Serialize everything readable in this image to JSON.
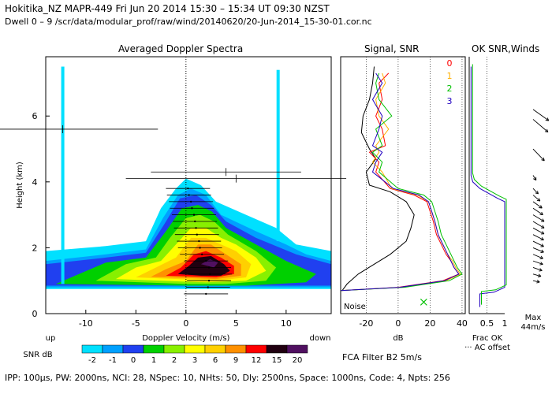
{
  "header": {
    "line1": "Hokitika_NZ  MAPR-449  Fri Jun 20 2014 15:30 – 15:34 UT 09:30 NZST",
    "line2": "Dwell  0 – 9   /scr/data/modular_prof/raw/wind/20140620/20-Jun-2014_15-30-01.cor.nc"
  },
  "footer": "IPP: 100µs,  PW: 2000ns,  NCI: 28,  NSpec: 10, NHts: 50,  Dly: 2500ns,  Space: 1000ns,  Code: 4,  Npts: 256",
  "filter_label": "FCA Filter B2  5m/s",
  "colors": {
    "snr_levels": [
      "#00e0ff",
      "#00a0ff",
      "#2040f0",
      "#00d000",
      "#88f000",
      "#ffff00",
      "#ffd000",
      "#ff9000",
      "#ff0000",
      "#200010",
      "#501060"
    ],
    "spectra_axis": "#000000",
    "range0": "#ff0000",
    "range1": "#ffb000",
    "range2": "#00c000",
    "range3": "#2000c0",
    "vector": "#000000"
  },
  "chart_data": [
    {
      "type": "heatmap",
      "title": "Averaged Doppler Spectra",
      "xlabel": "Doppler Velocity (m/s)",
      "ylabel": "Height (km)",
      "xlim": [
        -14,
        14.5
      ],
      "ylim": [
        0,
        7.8
      ],
      "xticks": [
        -10,
        -5,
        0,
        5,
        10
      ],
      "yticks": [
        0,
        2,
        4,
        6
      ],
      "up_label": "up",
      "down_label": "down",
      "colorbar": {
        "label": "SNR dB",
        "ticks": [
          "-2",
          "-1",
          "0",
          "1",
          "2",
          "3",
          "6",
          "9",
          "12",
          "15",
          "20"
        ]
      },
      "mean_profile": [
        {
          "h": 0.6,
          "v": 2.0
        },
        {
          "h": 0.8,
          "v": 2.2
        },
        {
          "h": 1.0,
          "v": 2.3
        },
        {
          "h": 1.2,
          "v": 2.4
        },
        {
          "h": 1.4,
          "v": 2.3
        },
        {
          "h": 1.6,
          "v": 2.0
        },
        {
          "h": 1.8,
          "v": 1.6
        },
        {
          "h": 2.0,
          "v": 1.4
        },
        {
          "h": 2.2,
          "v": 1.3
        },
        {
          "h": 2.4,
          "v": 1.1
        },
        {
          "h": 2.6,
          "v": 1.0
        },
        {
          "h": 2.8,
          "v": 0.9
        },
        {
          "h": 3.0,
          "v": 0.8
        },
        {
          "h": 3.2,
          "v": 0.6
        },
        {
          "h": 3.4,
          "v": 0.5
        },
        {
          "h": 3.6,
          "v": 0.3
        },
        {
          "h": 3.8,
          "v": 0.2
        }
      ],
      "outlier_points": [
        {
          "h": 5.6,
          "v": -12.3,
          "w": 19
        },
        {
          "h": 4.3,
          "v": 4.0,
          "w": 15
        },
        {
          "h": 4.1,
          "v": 5.0,
          "w": 22
        }
      ]
    },
    {
      "type": "line",
      "title": "Signal, SNR",
      "xlabel": "dB",
      "xlim": [
        -36,
        42
      ],
      "ylim": [
        0,
        7.8
      ],
      "xticks": [
        -20,
        0,
        20,
        40
      ],
      "range_gate_labels": [
        "0",
        "1",
        "2",
        "3"
      ],
      "noise_label": "Noise",
      "signal": [
        [
          0.7,
          -35
        ],
        [
          0.9,
          -32
        ],
        [
          1.2,
          -25
        ],
        [
          1.5,
          -15
        ],
        [
          1.8,
          -5
        ],
        [
          2.2,
          5
        ],
        [
          2.6,
          8
        ],
        [
          3.0,
          10
        ],
        [
          3.4,
          5
        ],
        [
          3.7,
          -5
        ],
        [
          3.9,
          -18
        ],
        [
          4.3,
          -20
        ],
        [
          4.7,
          -14
        ],
        [
          5.0,
          -18
        ],
        [
          5.5,
          -23
        ],
        [
          6.0,
          -22
        ],
        [
          6.5,
          -18
        ],
        [
          7.0,
          -16
        ],
        [
          7.5,
          -15
        ]
      ],
      "snr_series": [
        {
          "name": "0",
          "points": [
            [
              0.7,
              -36
            ],
            [
              0.8,
              0
            ],
            [
              1.0,
              28
            ],
            [
              1.2,
              38
            ],
            [
              1.4,
              35
            ],
            [
              1.6,
              33
            ],
            [
              1.8,
              30
            ],
            [
              2.1,
              27
            ],
            [
              2.4,
              24
            ],
            [
              2.8,
              22
            ],
            [
              3.1,
              20
            ],
            [
              3.4,
              18
            ],
            [
              3.6,
              10
            ],
            [
              3.8,
              -5
            ],
            [
              4.3,
              -14
            ],
            [
              4.6,
              -12
            ],
            [
              4.9,
              -18
            ],
            [
              5.1,
              -8
            ],
            [
              5.6,
              -10
            ],
            [
              6.0,
              -14
            ],
            [
              6.5,
              -10
            ],
            [
              7.0,
              -12
            ],
            [
              7.3,
              -6
            ]
          ]
        },
        {
          "name": "1",
          "points": [
            [
              0.7,
              -36
            ],
            [
              0.8,
              2
            ],
            [
              1.0,
              30
            ],
            [
              1.2,
              39
            ],
            [
              1.4,
              36
            ],
            [
              1.6,
              34
            ],
            [
              1.8,
              31
            ],
            [
              2.1,
              28
            ],
            [
              2.4,
              25
            ],
            [
              2.8,
              23
            ],
            [
              3.1,
              21
            ],
            [
              3.4,
              19
            ],
            [
              3.6,
              12
            ],
            [
              3.8,
              -4
            ],
            [
              4.3,
              -10
            ],
            [
              4.6,
              -16
            ],
            [
              4.9,
              -12
            ],
            [
              5.1,
              -14
            ],
            [
              5.6,
              -6
            ],
            [
              6.0,
              -12
            ],
            [
              6.5,
              -14
            ],
            [
              7.0,
              -8
            ],
            [
              7.3,
              -10
            ]
          ]
        },
        {
          "name": "2",
          "points": [
            [
              0.7,
              -36
            ],
            [
              0.8,
              4
            ],
            [
              1.0,
              32
            ],
            [
              1.2,
              40
            ],
            [
              1.4,
              37
            ],
            [
              1.6,
              35
            ],
            [
              1.8,
              33
            ],
            [
              2.1,
              30
            ],
            [
              2.4,
              27
            ],
            [
              2.8,
              25
            ],
            [
              3.1,
              23
            ],
            [
              3.4,
              21
            ],
            [
              3.6,
              16
            ],
            [
              3.8,
              0
            ],
            [
              4.3,
              -12
            ],
            [
              4.6,
              -10
            ],
            [
              4.9,
              -16
            ],
            [
              5.1,
              -10
            ],
            [
              5.6,
              -14
            ],
            [
              6.0,
              -4
            ],
            [
              6.5,
              -12
            ],
            [
              7.0,
              -14
            ],
            [
              7.3,
              -12
            ]
          ]
        },
        {
          "name": "3",
          "points": [
            [
              0.7,
              -36
            ],
            [
              0.8,
              1
            ],
            [
              1.0,
              29
            ],
            [
              1.2,
              38
            ],
            [
              1.4,
              35
            ],
            [
              1.6,
              33
            ],
            [
              1.8,
              31
            ],
            [
              2.1,
              28
            ],
            [
              2.4,
              25
            ],
            [
              2.8,
              23
            ],
            [
              3.1,
              21
            ],
            [
              3.4,
              19
            ],
            [
              3.6,
              13
            ],
            [
              3.8,
              -3
            ],
            [
              4.3,
              -16
            ],
            [
              4.6,
              -14
            ],
            [
              4.9,
              -10
            ],
            [
              5.1,
              -16
            ],
            [
              5.6,
              -12
            ],
            [
              6.0,
              -10
            ],
            [
              6.5,
              -16
            ],
            [
              7.0,
              -10
            ],
            [
              7.3,
              -14
            ]
          ]
        }
      ]
    },
    {
      "type": "line",
      "title": "OK SNR,Winds",
      "xlabel": "Frac OK",
      "xlim": [
        0,
        1
      ],
      "xticks": [
        0.5,
        1
      ],
      "xticklabels": [
        "0.5",
        "1"
      ],
      "legend_ac": "AC offset",
      "max_label": "Max",
      "max_value": "44m/s",
      "frac_ok": [
        [
          0.2,
          0.3
        ],
        [
          0.6,
          0.3
        ],
        [
          0.65,
          0.7
        ],
        [
          0.8,
          1.0
        ],
        [
          1.0,
          1.0
        ],
        [
          1.2,
          1.0
        ],
        [
          1.4,
          1.0
        ],
        [
          1.6,
          1.0
        ],
        [
          1.8,
          1.0
        ],
        [
          2.0,
          1.0
        ],
        [
          2.4,
          1.0
        ],
        [
          2.8,
          1.0
        ],
        [
          3.0,
          1.0
        ],
        [
          3.4,
          1.0
        ],
        [
          3.5,
          0.8
        ],
        [
          3.8,
          0.3
        ],
        [
          4.0,
          0.1
        ],
        [
          4.2,
          0.05
        ],
        [
          5.0,
          0.05
        ],
        [
          6.0,
          0.05
        ],
        [
          7.5,
          0.05
        ]
      ],
      "winds": [
        {
          "h": 1.0,
          "speed": 8,
          "dir": 250
        },
        {
          "h": 1.2,
          "speed": 10,
          "dir": 245
        },
        {
          "h": 1.4,
          "speed": 12,
          "dir": 240
        },
        {
          "h": 1.6,
          "speed": 13,
          "dir": 240
        },
        {
          "h": 1.8,
          "speed": 14,
          "dir": 235
        },
        {
          "h": 2.0,
          "speed": 15,
          "dir": 235
        },
        {
          "h": 2.2,
          "speed": 16,
          "dir": 230
        },
        {
          "h": 2.4,
          "speed": 16,
          "dir": 230
        },
        {
          "h": 2.6,
          "speed": 17,
          "dir": 228
        },
        {
          "h": 2.8,
          "speed": 18,
          "dir": 225
        },
        {
          "h": 3.0,
          "speed": 18,
          "dir": 225
        },
        {
          "h": 3.2,
          "speed": 17,
          "dir": 222
        },
        {
          "h": 3.4,
          "speed": 16,
          "dir": 220
        },
        {
          "h": 3.6,
          "speed": 14,
          "dir": 215
        },
        {
          "h": 3.8,
          "speed": 12,
          "dir": 210
        },
        {
          "h": 4.2,
          "speed": 10,
          "dir": 200
        },
        {
          "h": 5.0,
          "speed": 26,
          "dir": 210
        },
        {
          "h": 5.9,
          "speed": 30,
          "dir": 215
        },
        {
          "h": 6.2,
          "speed": 28,
          "dir": 220
        }
      ]
    }
  ]
}
